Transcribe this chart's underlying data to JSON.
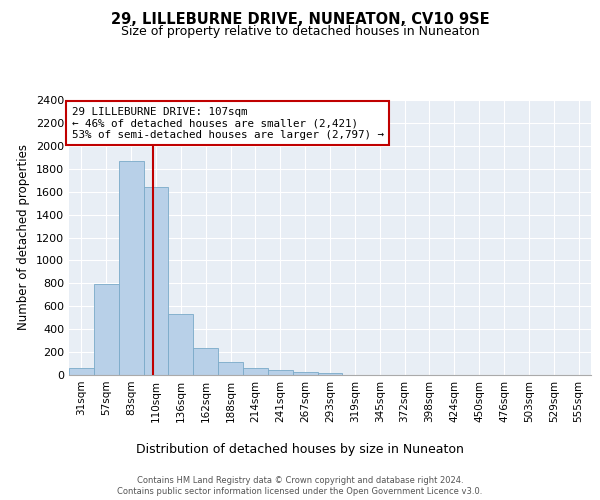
{
  "title": "29, LILLEBURNE DRIVE, NUNEATON, CV10 9SE",
  "subtitle": "Size of property relative to detached houses in Nuneaton",
  "xlabel": "Distribution of detached houses by size in Nuneaton",
  "ylabel": "Number of detached properties",
  "categories": [
    "31sqm",
    "57sqm",
    "83sqm",
    "110sqm",
    "136sqm",
    "162sqm",
    "188sqm",
    "214sqm",
    "241sqm",
    "267sqm",
    "293sqm",
    "319sqm",
    "345sqm",
    "372sqm",
    "398sqm",
    "424sqm",
    "450sqm",
    "476sqm",
    "503sqm",
    "529sqm",
    "555sqm"
  ],
  "values": [
    60,
    790,
    1870,
    1640,
    530,
    240,
    110,
    60,
    40,
    25,
    20,
    0,
    0,
    0,
    0,
    0,
    0,
    0,
    0,
    0,
    0
  ],
  "bar_color": "#b8d0e8",
  "bar_edge_color": "#7aaac8",
  "bar_width": 1.0,
  "ylim": [
    0,
    2400
  ],
  "yticks": [
    0,
    200,
    400,
    600,
    800,
    1000,
    1200,
    1400,
    1600,
    1800,
    2000,
    2200,
    2400
  ],
  "property_line_color": "#c00000",
  "annotation_text": "29 LILLEBURNE DRIVE: 107sqm\n← 46% of detached houses are smaller (2,421)\n53% of semi-detached houses are larger (2,797) →",
  "annotation_box_color": "#c00000",
  "background_color": "#e8eef5",
  "grid_color": "#ffffff",
  "footer_line1": "Contains HM Land Registry data © Crown copyright and database right 2024.",
  "footer_line2": "Contains public sector information licensed under the Open Government Licence v3.0."
}
